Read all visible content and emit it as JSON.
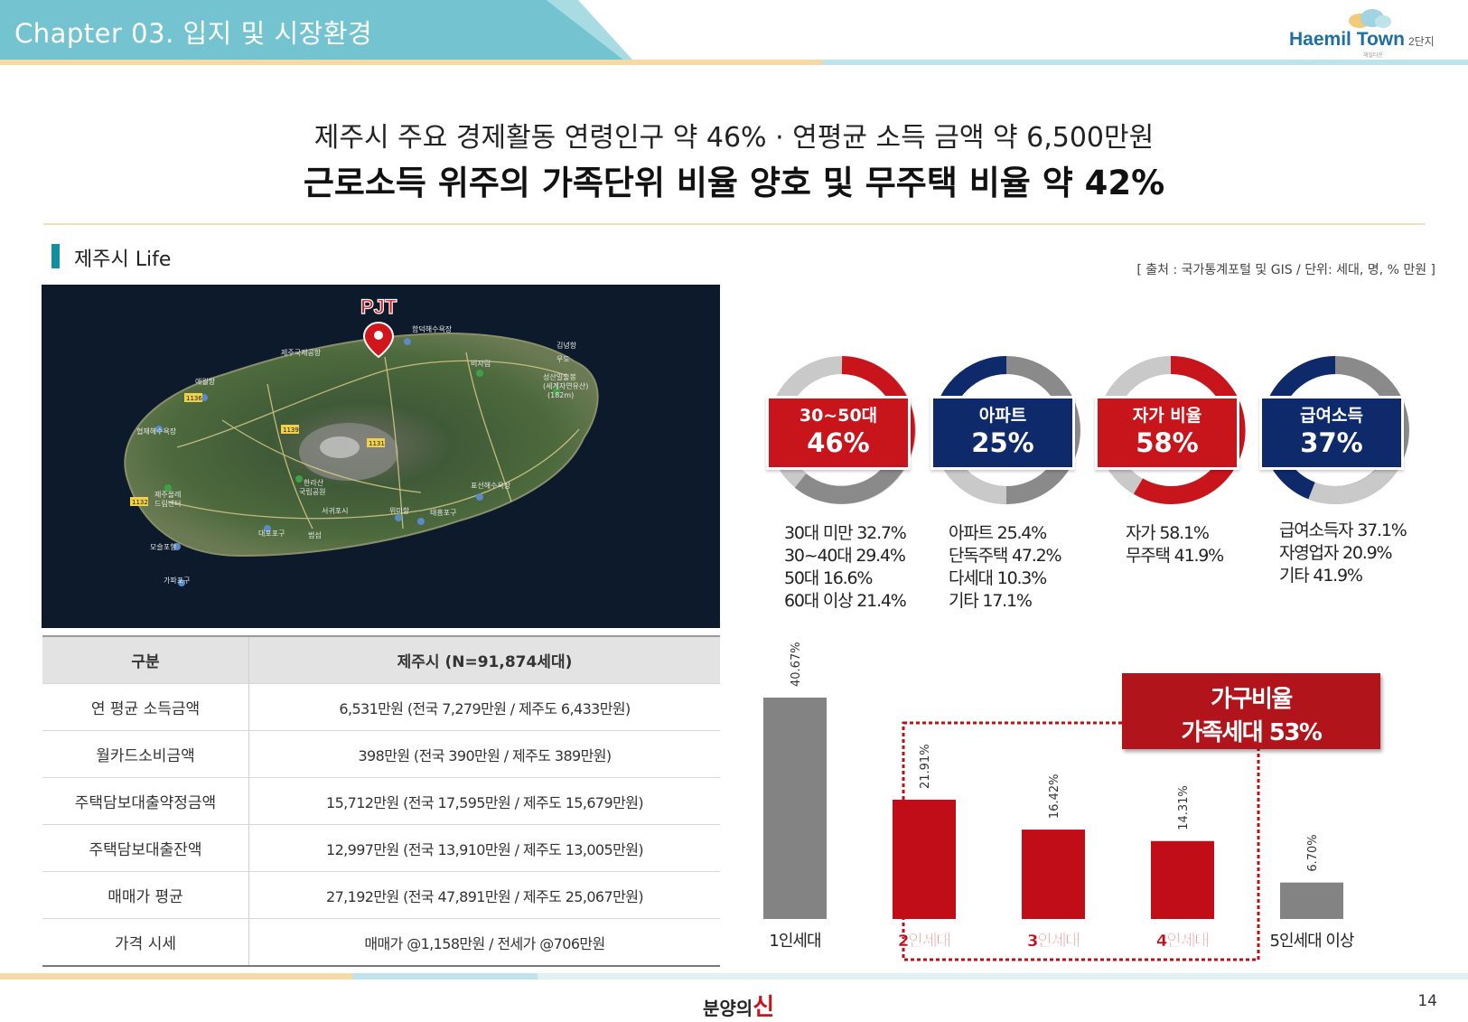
{
  "header": {
    "chapter": "Chapter 03. 입지 및 시장환경",
    "logo_brand": "Haemil Town",
    "logo_suffix": "2단지",
    "logo_tag": "해밀타운"
  },
  "titles": {
    "subtitle": "제주시 주요 경제활동 연령인구 약 46% · 연평균 소득 금액 약 6,500만원",
    "headline": "근로소득 위주의 가족단위 비율 양호 및 무주택 비율 약 42%"
  },
  "section": {
    "title": "제주시 Life",
    "source": "[ 출처 : 국가통계포털 및 GIS / 단위: 세대, 명, % 만원 ]"
  },
  "map": {
    "pin_label": "PJT",
    "places": [
      "제주국제공항",
      "함덕해수욕장",
      "애월항",
      "협재해수욕장",
      "성산일출봉 (세계자연유산) (182m)",
      "비자림",
      "한라산 국립공원",
      "서귀포시",
      "위미항",
      "표선해수욕장",
      "대포포구",
      "모슬포항",
      "가파포구",
      "제주올레 드림센터",
      "1136",
      "1139",
      "1131",
      "1132",
      "태흥포구",
      "범섬",
      "우도",
      "김녕항"
    ]
  },
  "table": {
    "headers": [
      "구분",
      "제주시 (N=91,874세대)"
    ],
    "rows": [
      {
        "label": "연 평균 소득금액",
        "value": "6,531만원 (전국 7,279만원 / 제주도 6,433만원)"
      },
      {
        "label": "월카드소비금액",
        "value": "398만원 (전국 390만원 / 제주도 389만원)"
      },
      {
        "label": "주택담보대출약정금액",
        "value": "15,712만원 (전국 17,595만원 / 제주도 15,679만원)"
      },
      {
        "label": "주택담보대출잔액",
        "value": "12,997만원 (전국 13,910만원 / 제주도 13,005만원)"
      },
      {
        "label": "매매가 평균",
        "value": "27,192만원 (전국 47,891만원 / 제주도 25,067만원)"
      },
      {
        "label": "가격 시세",
        "value": "매매가 @1,158만원 / 전세가 @706만원"
      }
    ]
  },
  "colors": {
    "red": "#c8151c",
    "navy": "#0f2a6b",
    "gray": "#8a8a8a",
    "lightgray": "#c9c9c9",
    "teal": "#118fa3",
    "header_teal": "#74c3d0"
  },
  "donuts": [
    {
      "key": "30~50대",
      "value": "46%",
      "color": "#c8151c",
      "items": [
        "30대 미만 32.7%",
        "30~40대 29.4%",
        "50대 16.6%",
        "60대 이상 21.4%"
      ]
    },
    {
      "key": "아파트",
      "value": "25%",
      "color": "#0f2a6b",
      "items": [
        "아파트 25.4%",
        "단독주택 47.2%",
        "다세대 10.3%",
        "기타 17.1%"
      ]
    },
    {
      "key": "자가 비율",
      "value": "58%",
      "color": "#c8151c",
      "items": [
        "자가 58.1%",
        "무주택 41.9%"
      ]
    },
    {
      "key": "급여소득",
      "value": "37%",
      "color": "#0f2a6b",
      "items": [
        "급여소득자 37.1%",
        "자영업자 20.9%",
        "기타 41.9%"
      ]
    }
  ],
  "family_box": {
    "line1": "가구비율",
    "line2": "가족세대 53%"
  },
  "chart_data": {
    "type": "bar",
    "categories": [
      "1인세대",
      "2인세대",
      "3인세대",
      "4인세대",
      "5인세대 이상"
    ],
    "values": [
      40.67,
      21.91,
      16.42,
      14.31,
      6.7
    ],
    "value_labels": [
      "40.67%",
      "21.91%",
      "16.42%",
      "14.31%",
      "6.70%"
    ],
    "highlight": [
      false,
      true,
      true,
      true,
      false
    ],
    "colors": {
      "normal": "#838383",
      "highlight": "#c00d17"
    },
    "ylim": [
      0,
      45
    ]
  },
  "footer": {
    "logo_pre": "분양의",
    "logo_accent": "신",
    "page": "14"
  }
}
